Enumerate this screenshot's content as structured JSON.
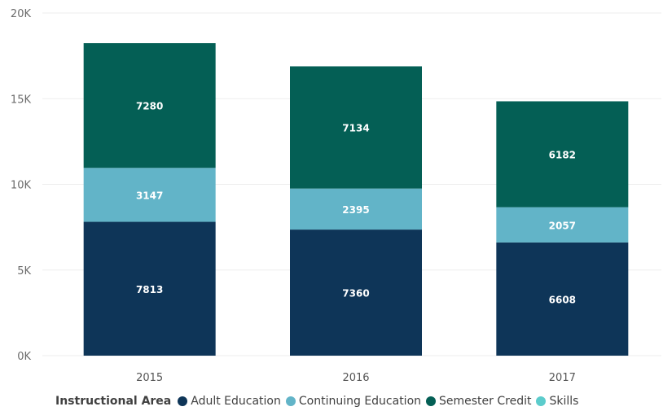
{
  "chart_data": {
    "type": "bar",
    "stacked": true,
    "title": "",
    "xlabel": "",
    "ylabel": "",
    "categories": [
      "2015",
      "2016",
      "2017"
    ],
    "ylim": [
      0,
      20000
    ],
    "yticks": [
      0,
      5000,
      10000,
      15000,
      20000
    ],
    "ytick_labels": [
      "0K",
      "5K",
      "10K",
      "15K",
      "20K"
    ],
    "grid": true,
    "legend": {
      "title": "Instructional Area",
      "position": "bottom-left"
    },
    "series": [
      {
        "name": "Adult Education",
        "color": "#0e3558",
        "values": [
          7813,
          7360,
          6608
        ],
        "labels": [
          "7813",
          "7360",
          "6608"
        ]
      },
      {
        "name": "Continuing Education",
        "color": "#62b4c8",
        "values": [
          3147,
          2395,
          2057
        ],
        "labels": [
          "3147",
          "2395",
          "2057"
        ]
      },
      {
        "name": "Semester Credit",
        "color": "#045f55",
        "values": [
          7280,
          7134,
          6182
        ],
        "labels": [
          "7280",
          "7134",
          "6182"
        ]
      },
      {
        "name": "Skills",
        "color": "#5ccccc",
        "values": [
          0,
          0,
          0
        ],
        "labels": [
          "",
          "",
          ""
        ]
      }
    ]
  }
}
